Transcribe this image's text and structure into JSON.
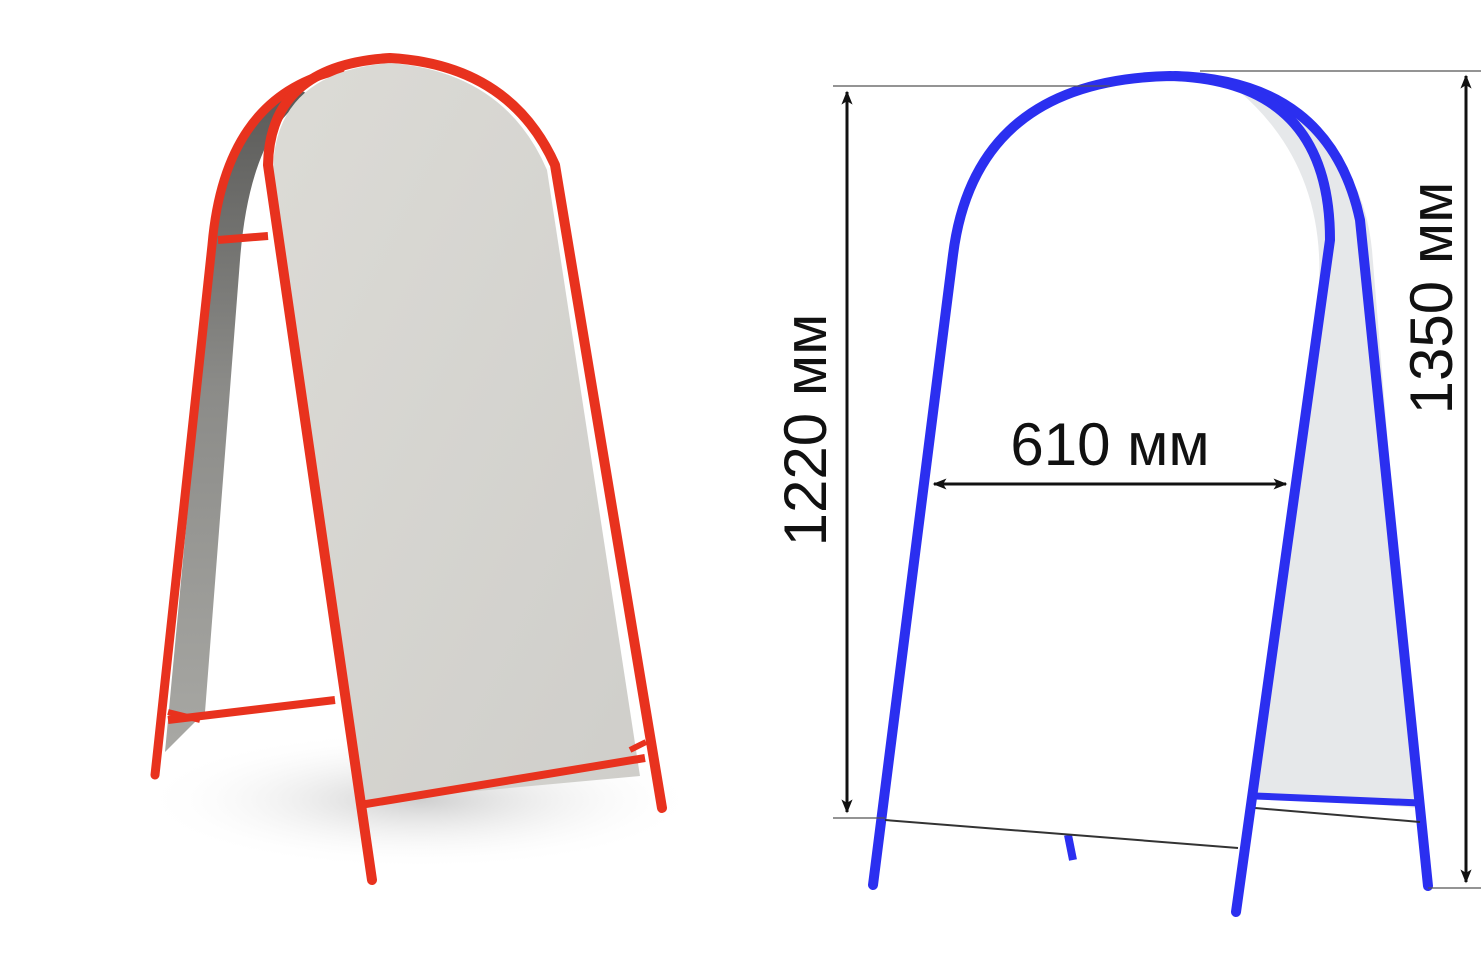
{
  "product_render": {
    "frame_color": "#e8321e",
    "panel_color": "#d9d8d2"
  },
  "schematic": {
    "frame_color": "#2b2ff0",
    "back_panel_color": "#e6e8ea",
    "dimension_color": "#111111",
    "dimensions": {
      "height_front": "1220 мм",
      "width_inner": "610 мм",
      "height_total": "1350 мм"
    }
  }
}
